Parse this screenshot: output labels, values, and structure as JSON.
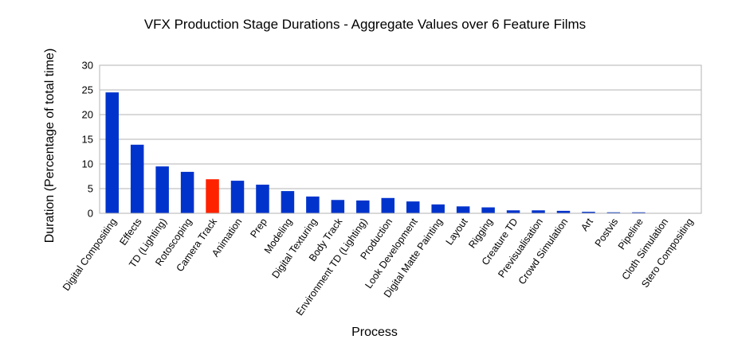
{
  "chart_data": {
    "type": "bar",
    "title": "VFX Production Stage Durations - Aggregate Values over 6 Feature Films",
    "xlabel": "Process",
    "ylabel": "Duration (Percentage of total time)",
    "ylim": [
      0,
      30
    ],
    "yticks": [
      0,
      5,
      10,
      15,
      20,
      25,
      30
    ],
    "grid": true,
    "legend": "none",
    "categories": [
      "Digital Compositing",
      "Effects",
      "TD (Lighting)",
      "Rotoscoping",
      "Camera Track",
      "Animation",
      "Prep",
      "Modeling",
      "Digital Texturing",
      "Body Track",
      "Environment TD (Lighting)",
      "Production",
      "Look Development",
      "Digital Matte Painting",
      "Layout",
      "Rigging",
      "Creature TD",
      "Previsualisation",
      "Crowd Simulation",
      "Art",
      "Postvis",
      "Pipeline",
      "Cloth Simulation",
      "Stero Compositing"
    ],
    "values": [
      24.5,
      13.9,
      9.5,
      8.4,
      6.9,
      6.6,
      5.8,
      4.5,
      3.4,
      2.7,
      2.6,
      3.1,
      2.4,
      1.8,
      1.4,
      1.2,
      0.6,
      0.6,
      0.5,
      0.3,
      0.2,
      0.2,
      0,
      0
    ],
    "colors": {
      "default": "#0033cc",
      "highlight": "#ff2200",
      "highlight_index": 4
    }
  }
}
